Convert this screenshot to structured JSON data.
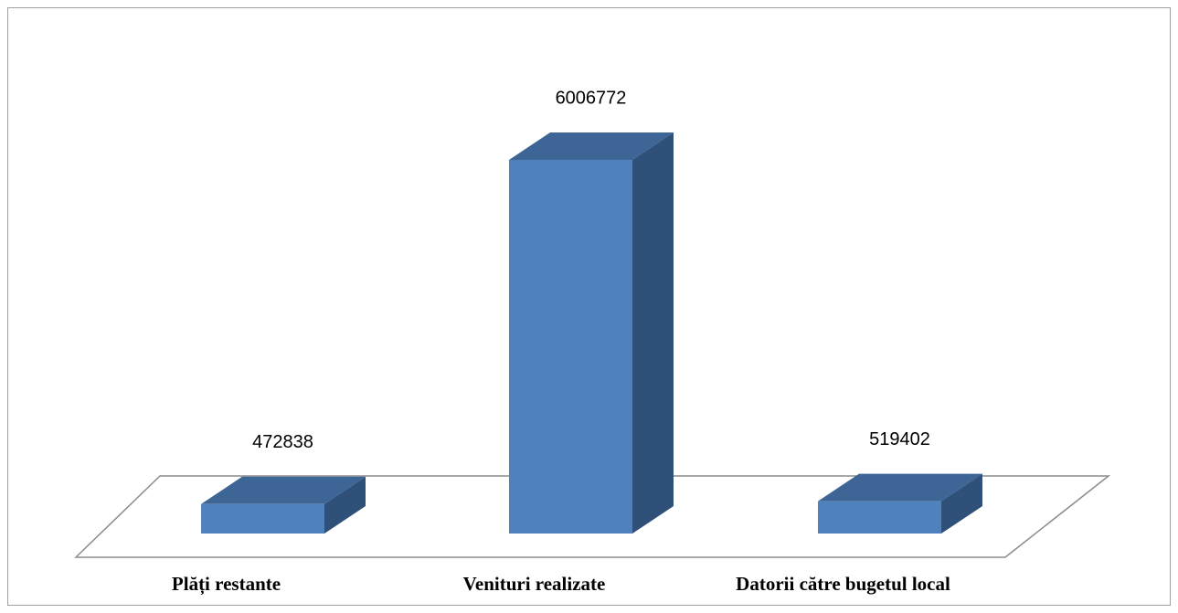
{
  "chart_data": {
    "type": "bar3d",
    "categories": [
      "Plăți restante",
      "Venituri realizate",
      "Datorii către bugetul local"
    ],
    "values": [
      472838,
      6006772,
      519402
    ],
    "color": "#4f81bd"
  }
}
